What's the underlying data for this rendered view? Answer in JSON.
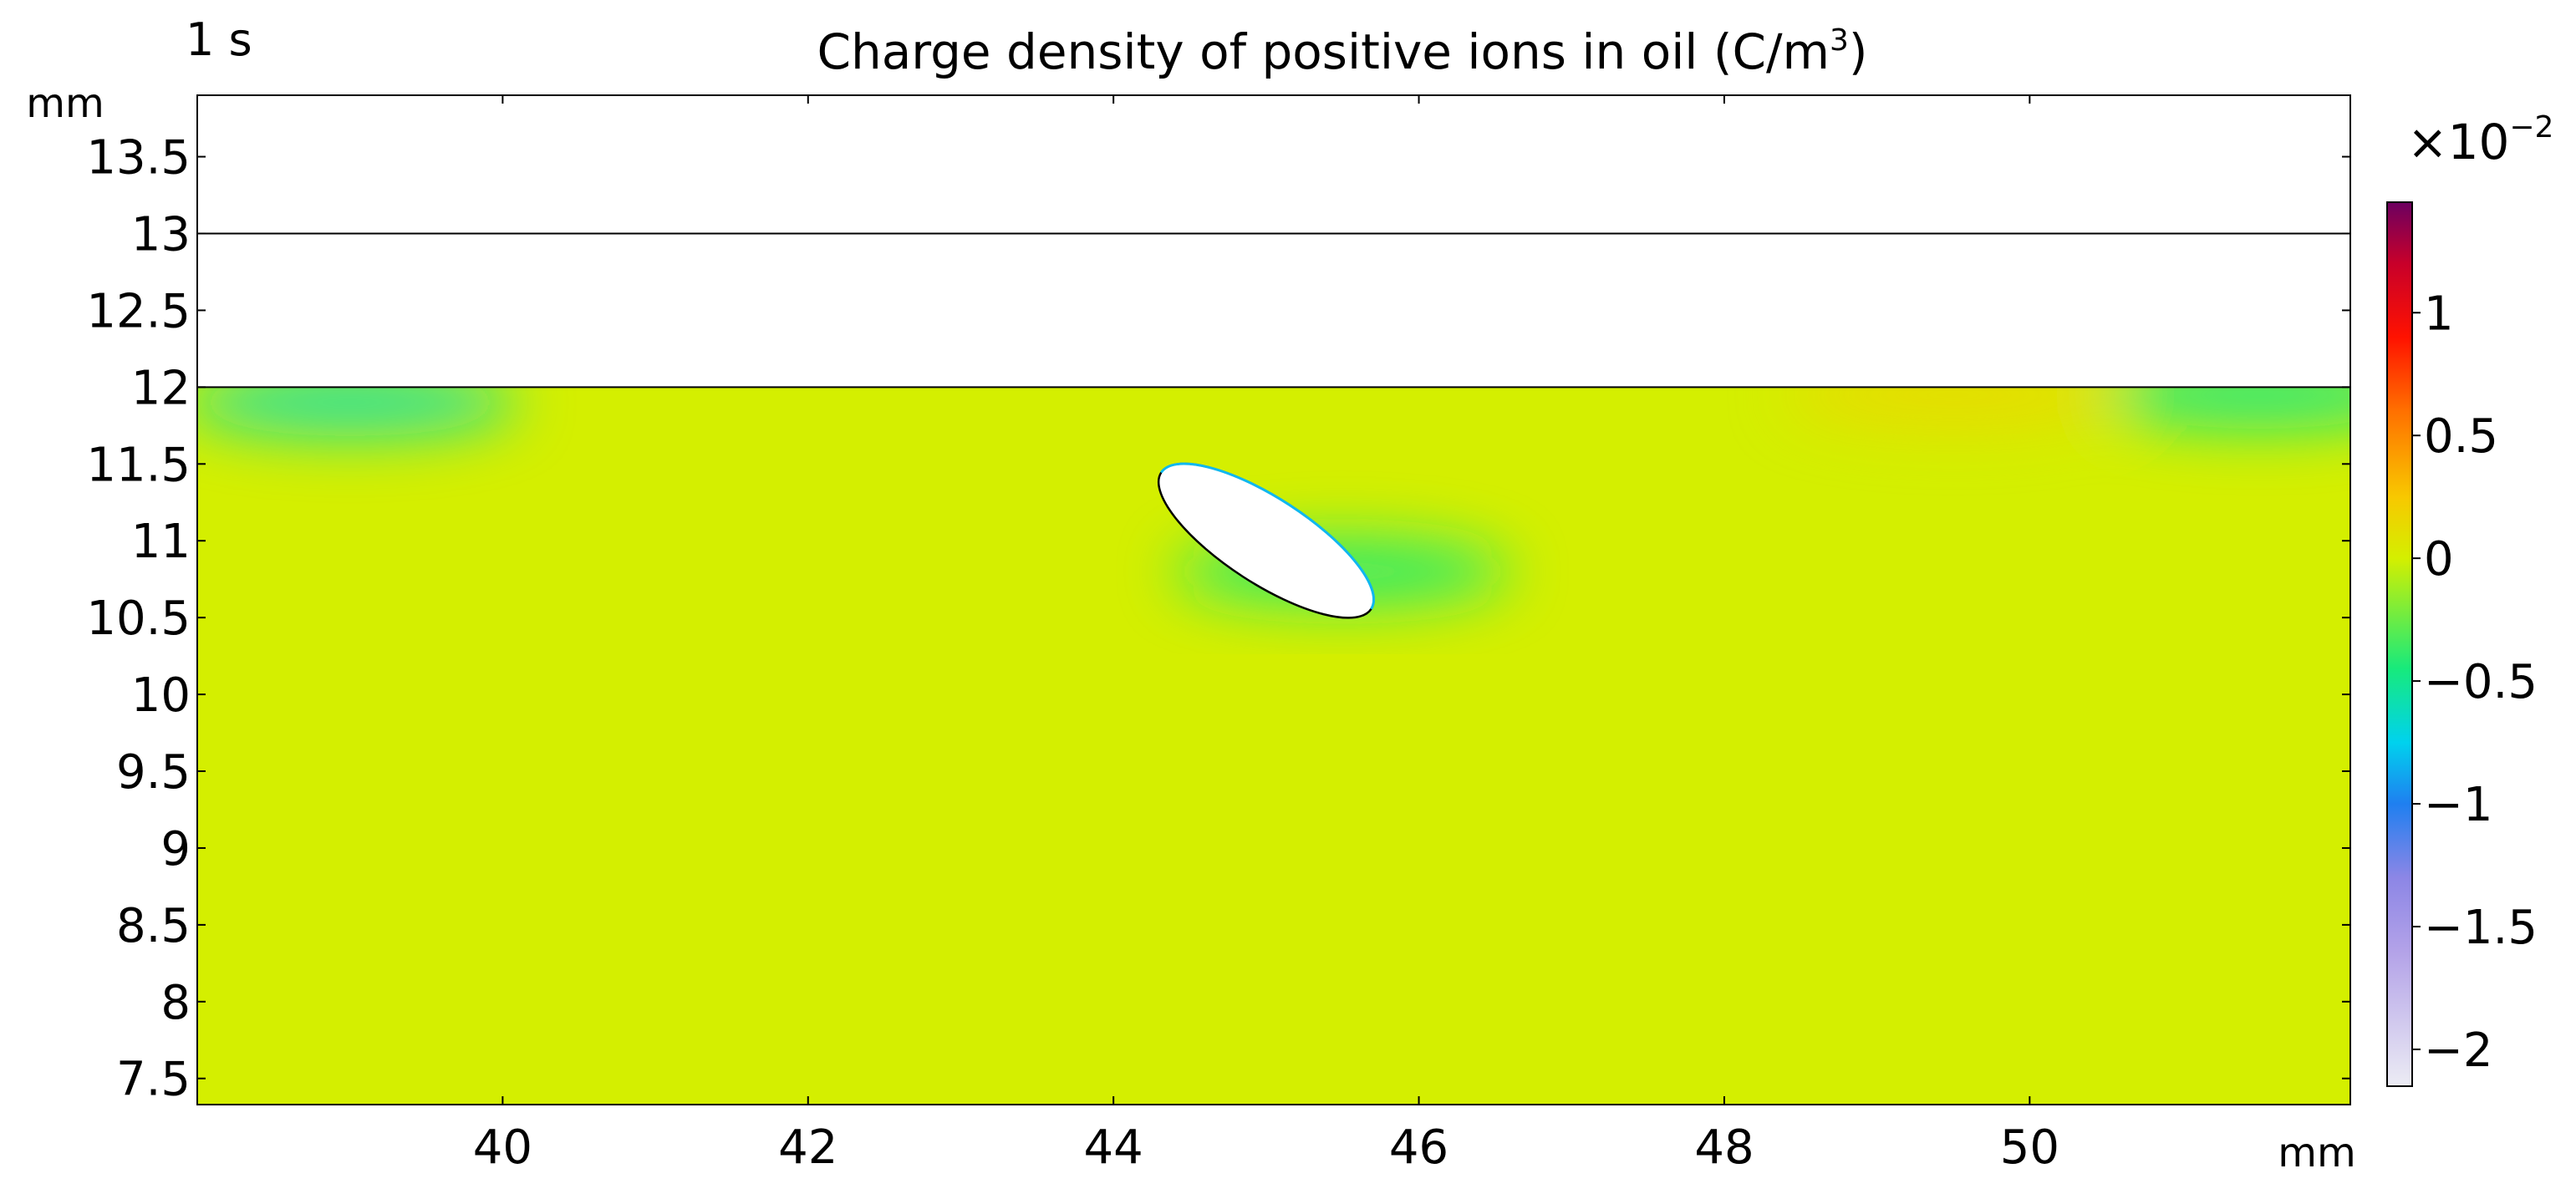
{
  "chart_data": {
    "type": "heatmap",
    "title": "Charge density of positive ions in oil (C/m",
    "title_superscript": "3",
    "title_suffix": ")",
    "time_label": "1 s",
    "xunit": "mm",
    "yunit": "mm",
    "xlim": [
      38.0,
      52.1
    ],
    "ylim": [
      7.33,
      13.9
    ],
    "xticks": [
      "40",
      "42",
      "44",
      "46",
      "48",
      "50"
    ],
    "xtick_values": [
      40,
      42,
      44,
      46,
      48,
      50
    ],
    "yticks": [
      "13.5",
      "13",
      "12.5",
      "12",
      "11.5",
      "11",
      "10.5",
      "10",
      "9.5",
      "9",
      "8.5",
      "8",
      "7.5"
    ],
    "ytick_values": [
      13.5,
      13,
      12.5,
      12,
      11.5,
      11,
      10.5,
      10,
      9.5,
      9,
      8.5,
      8,
      7.5
    ],
    "boundary_lines_y": [
      13,
      12
    ],
    "field": {
      "base_value": 0.0,
      "region_ymax": 12.0,
      "features": [
        {
          "x": 39.0,
          "y": 11.9,
          "value": -0.6
        },
        {
          "x": 51.5,
          "y": 11.95,
          "value": -0.5
        },
        {
          "x": 49.5,
          "y": 11.95,
          "value": 0.15
        },
        {
          "x": 45.5,
          "y": 10.8,
          "value": -0.45
        }
      ]
    },
    "inclusion": {
      "shape": "ellipse",
      "center": [
        45.0,
        11.0
      ],
      "rx_mm": 0.82,
      "ry_mm": 0.28,
      "rotation_deg": 33
    },
    "colorbar": {
      "multiplier_base": "×10",
      "multiplier_exponent": "−2",
      "range": [
        -2.15,
        1.45
      ],
      "ticks": [
        "1",
        "0.5",
        "0",
        "−0.5",
        "−1",
        "−1.5",
        "−2"
      ],
      "tick_values": [
        1,
        0.5,
        0,
        -0.5,
        -1,
        -1.5,
        -2
      ],
      "colors": [
        "#ececf4",
        "#b3a2e8",
        "#8c86e6",
        "#1f7ff0",
        "#00d2ee",
        "#17ea7c",
        "#d4ef00",
        "#f8c800",
        "#ff7000",
        "#ff1200",
        "#c8002a",
        "#6c0060"
      ],
      "color_stops": [
        -2.15,
        -1.6,
        -1.3,
        -1.0,
        -0.75,
        -0.45,
        0.0,
        0.25,
        0.6,
        0.9,
        1.2,
        1.45
      ]
    }
  }
}
